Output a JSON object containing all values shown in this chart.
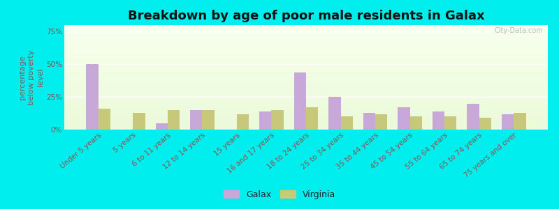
{
  "title": "Breakdown by age of poor male residents in Galax",
  "ylabel": "percentage\nbelow poverty\nlevel",
  "categories": [
    "Under 5 years",
    "5 years",
    "6 to 11 years",
    "12 to 14 years",
    "15 years",
    "16 and 17 years",
    "18 to 24 years",
    "25 to 34 years",
    "35 to 44 years",
    "45 to 54 years",
    "55 to 64 years",
    "65 to 74 years",
    "75 years and over"
  ],
  "galax_values": [
    50,
    0,
    5,
    15,
    0,
    14,
    44,
    25,
    13,
    17,
    14,
    20,
    12
  ],
  "virginia_values": [
    16,
    13,
    15,
    15,
    12,
    15,
    17,
    10,
    12,
    10,
    10,
    9,
    13
  ],
  "galax_color": "#c8a8d8",
  "virginia_color": "#c8c87a",
  "outer_bg": "#00eeee",
  "yticks": [
    0,
    25,
    50,
    75
  ],
  "ytick_labels": [
    "0%",
    "25%",
    "50%",
    "75%"
  ],
  "ylim": [
    0,
    80
  ],
  "bar_width": 0.35,
  "title_fontsize": 13,
  "axis_fontsize": 8,
  "tick_fontsize": 7.5,
  "legend_fontsize": 9,
  "watermark": "City-Data.com",
  "legend_galax": "Galax",
  "legend_virginia": "Virginia"
}
